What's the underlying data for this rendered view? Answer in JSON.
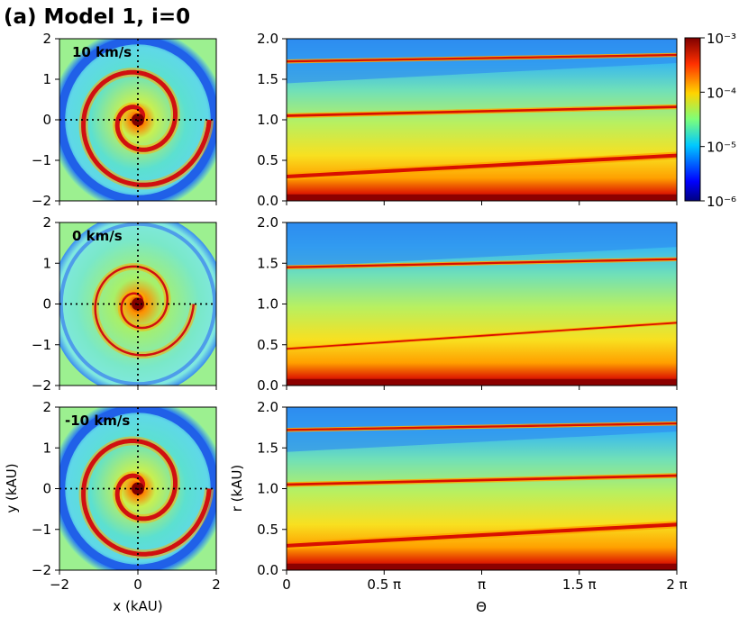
{
  "title": "(a) Model 1, i=0",
  "chart_data": {
    "type": "heatmap",
    "left_panels": [
      {
        "label": "10 km/s",
        "shape": "spiral"
      },
      {
        "label": "0 km/s",
        "shape": "spiral-thin"
      },
      {
        "label": "-10 km/s",
        "shape": "spiral"
      }
    ],
    "left_xlabel": "x (kAU)",
    "left_ylabel": "y (kAU)",
    "left_xlim": [
      -2,
      2
    ],
    "left_ylim": [
      -2,
      2
    ],
    "left_xticks": [
      "−2",
      "0",
      "2"
    ],
    "left_yticks": [
      "−2",
      "−1",
      "0",
      "1",
      "2"
    ],
    "right_xlabel": "Θ",
    "right_ylabel": "r (kAU)",
    "right_xlim": [
      0,
      2
    ],
    "right_ylim": [
      0,
      2
    ],
    "right_xticks": [
      "0",
      "0.5 π",
      "π",
      "1.5 π",
      "2 π"
    ],
    "right_yticks": [
      "0.0",
      "0.5",
      "1.0",
      "1.5",
      "2.0"
    ],
    "colorbar": {
      "scale": "log",
      "min": 1e-06,
      "max": 0.001,
      "ticks": [
        "10⁻⁶",
        "10⁻⁵",
        "10⁻⁴",
        "10⁻³"
      ],
      "colormap": "jet"
    },
    "right_bands": [
      [
        {
          "r0": 0.3,
          "slope": 0.13,
          "w": 0.09
        },
        {
          "r0": 1.05,
          "slope": 0.055,
          "w": 0.06
        },
        {
          "r0": 1.72,
          "slope": 0.04,
          "w": 0.05
        }
      ],
      [
        {
          "r0": 0.45,
          "slope": 0.16,
          "w": 0.04
        },
        {
          "r0": 1.45,
          "slope": 0.05,
          "w": 0.05
        }
      ],
      [
        {
          "r0": 0.3,
          "slope": 0.13,
          "w": 0.09
        },
        {
          "r0": 1.05,
          "slope": 0.055,
          "w": 0.06
        },
        {
          "r0": 1.72,
          "slope": 0.04,
          "w": 0.05
        }
      ]
    ]
  }
}
